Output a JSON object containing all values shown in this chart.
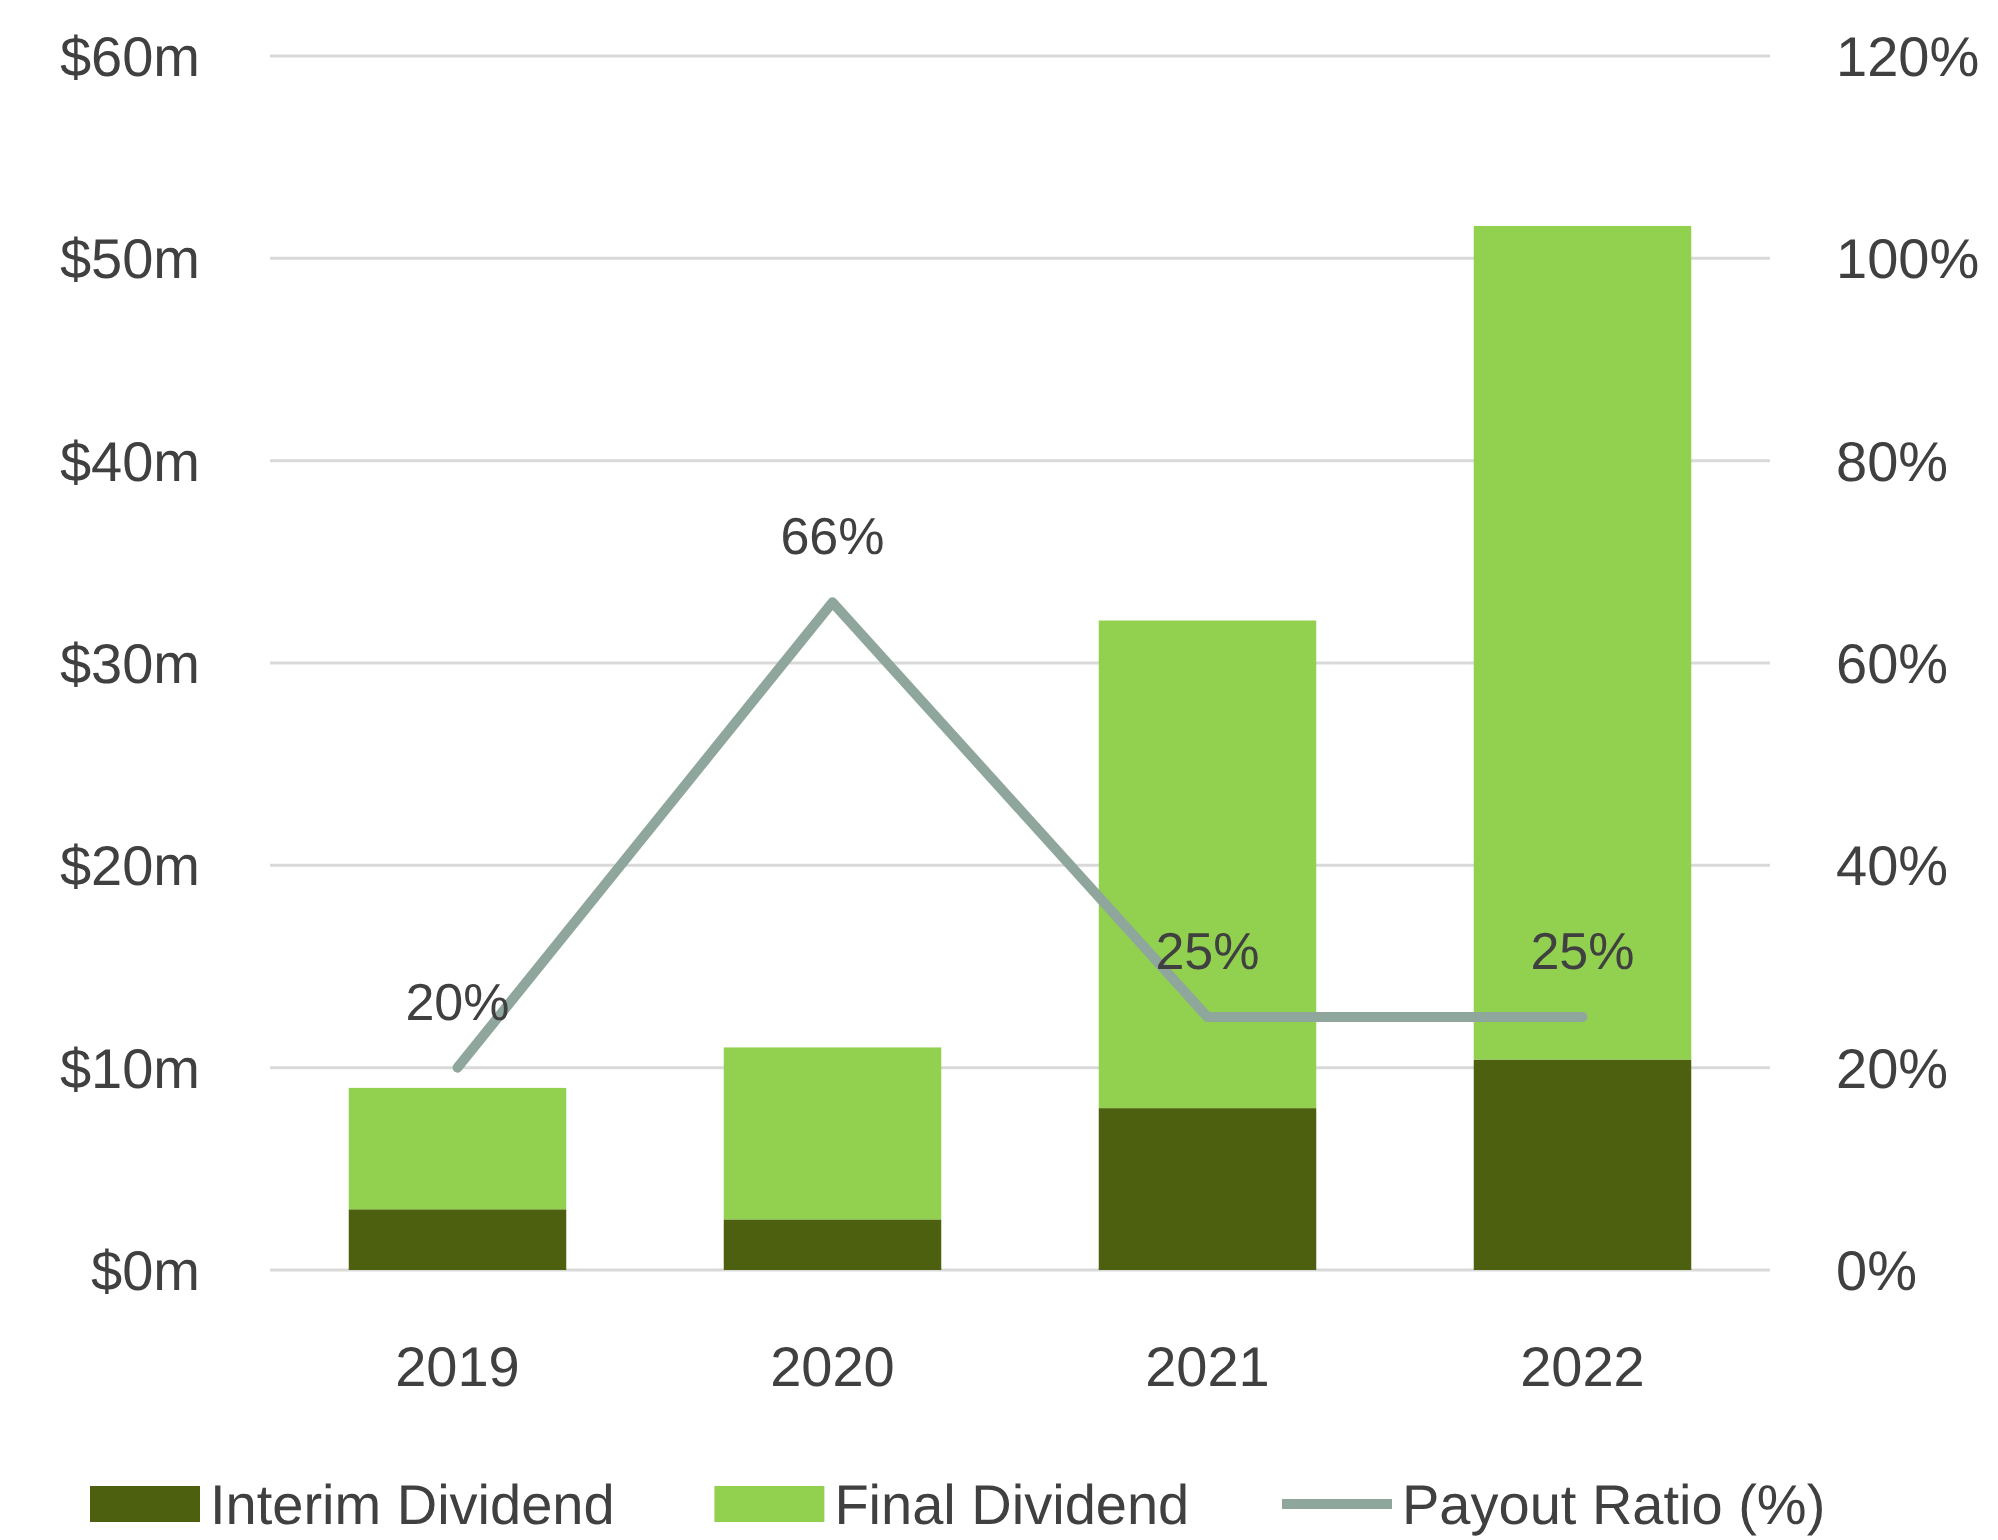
{
  "chart_data": {
    "type": "bar",
    "stacked": true,
    "categories": [
      "2019",
      "2020",
      "2021",
      "2022"
    ],
    "series": [
      {
        "name": "Interim Dividend",
        "color": "#4d6010",
        "values": [
          3,
          2.5,
          8,
          10.4
        ]
      },
      {
        "name": "Final Dividend",
        "color": "#92d050",
        "values": [
          6,
          8.5,
          24.1,
          41.2
        ]
      },
      {
        "name": "Payout Ratio (%)",
        "type": "line",
        "axis": "y2",
        "color": "#8fa69d",
        "values": [
          20,
          66,
          25,
          25
        ],
        "value_labels": [
          "20%",
          "66%",
          "25%",
          "25%"
        ]
      }
    ],
    "ylim": [
      0,
      60
    ],
    "yticks": [
      {
        "value": 0,
        "label": "$0m"
      },
      {
        "value": 10,
        "label": "$10m"
      },
      {
        "value": 20,
        "label": "$20m"
      },
      {
        "value": 30,
        "label": "$30m"
      },
      {
        "value": 40,
        "label": "$40m"
      },
      {
        "value": 50,
        "label": "$50m"
      },
      {
        "value": 60,
        "label": "$60m"
      }
    ],
    "y2lim": [
      0,
      120
    ],
    "y2ticks": [
      {
        "value": 0,
        "label": "0%"
      },
      {
        "value": 20,
        "label": "20%"
      },
      {
        "value": 40,
        "label": "40%"
      },
      {
        "value": 60,
        "label": "60%"
      },
      {
        "value": 80,
        "label": "80%"
      },
      {
        "value": 100,
        "label": "100%"
      },
      {
        "value": 120,
        "label": "120%"
      }
    ],
    "grid": "y",
    "legend": "bottom",
    "marker": "none",
    "line_style": "solid"
  }
}
